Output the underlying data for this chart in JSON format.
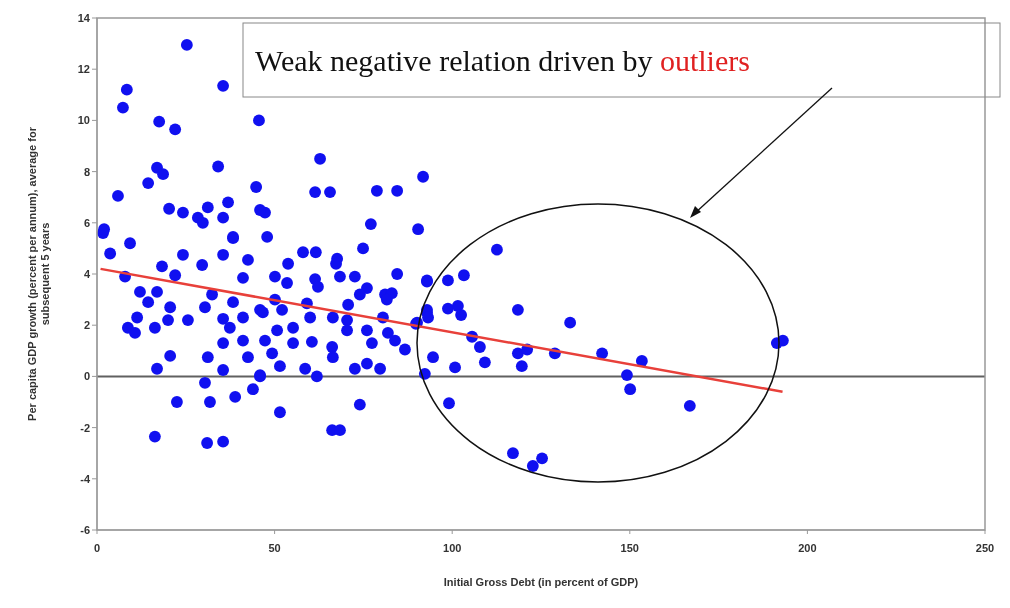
{
  "chart_data": {
    "type": "scatter",
    "xlabel": "Initial Gross Debt (in percent of GDP)",
    "ylabel": "Per capita GDP growth (percent per annum), average for\nsubsequent 5 years",
    "annotations": [
      "Weak negative relation driven by outliers"
    ],
    "xlim": [
      0,
      250
    ],
    "xticks": [
      0,
      50,
      100,
      150,
      200,
      250
    ],
    "ylim": [
      -6,
      14
    ],
    "yticks": [
      -6,
      -4,
      -2,
      0,
      2,
      4,
      6,
      8,
      10,
      12,
      14
    ],
    "grid": false,
    "marker": "circle",
    "ref_lines": [
      {
        "axis": "y",
        "value": 0,
        "color": "#606060"
      }
    ],
    "series": [
      {
        "type": "scatter",
        "color": "#1010f0",
        "x": [
          62.8,
          61.4,
          65.6,
          78.8,
          84.5,
          91.8,
          77.1,
          90.4,
          47.3,
          47.9,
          74.9,
          58,
          61.6,
          53.8,
          67.6,
          67.3,
          50.1,
          53.5,
          61.4,
          62.2,
          68.4,
          72.6,
          84.5,
          92.9,
          76,
          74,
          81.1,
          83,
          81.6,
          92.9,
          59.1,
          70.7,
          45.9,
          50.1,
          52.1,
          60,
          66.4,
          70.4,
          80.5,
          90.1,
          46.7,
          50.7,
          55.2,
          70.4,
          76,
          81.9,
          47.3,
          55.2,
          60.5,
          66.2,
          77.4,
          83.9,
          49.3,
          66.4,
          86.7,
          94.6,
          51.5,
          58.6,
          61.9,
          72.6,
          76,
          79.7,
          45.9,
          74,
          51.5,
          66.2,
          68.4,
          1.7,
          9.3,
          3.7,
          24.2,
          35.5,
          38.3,
          18.3,
          29.6,
          42.5,
          7.9,
          22,
          41.1,
          12.1,
          16.9,
          32.4,
          14.4,
          20.6,
          30.4,
          38.3,
          11.3,
          20,
          25.6,
          35.5,
          41.1,
          8.7,
          10.7,
          16.3,
          37.4,
          41.1,
          35.5,
          20.6,
          31.2,
          42.5,
          16.9,
          35.5,
          45.9,
          30.4,
          43.9,
          22.5,
          31.8,
          38.9,
          16.3,
          31,
          35.5,
          25.3,
          8.4,
          7.3,
          35.5,
          17.5,
          22,
          45.6,
          34.1,
          16.9,
          18.6,
          14.4,
          5.9,
          44.8,
          20.3,
          24.2,
          31.2,
          28.4,
          29.8,
          36.9,
          35.5,
          2,
          38.3,
          45.9,
          112.6,
          92.9,
          98.8,
          103.3,
          92.9,
          93.2,
          98.8,
          101.6,
          102.5,
          118.5,
          133.2,
          89.8,
          105.6,
          107.8,
          100.8,
          109.2,
          118.5,
          121.1,
          119.6,
          128.9,
          142.2,
          153.4,
          149.2,
          150.1,
          166.9,
          92.3,
          99.1,
          191.4,
          193.1,
          117.1,
          125.3,
          122.7
        ],
        "values": [
          8.5,
          7.2,
          7.2,
          7.25,
          7.25,
          7.8,
          5.95,
          5.75,
          6.4,
          5.45,
          5,
          4.85,
          4.85,
          4.4,
          4.6,
          4.4,
          3.9,
          3.65,
          3.8,
          3.5,
          3.9,
          3.9,
          4,
          3.7,
          3.45,
          3.2,
          3.2,
          3.25,
          3,
          2.5,
          2.85,
          2.8,
          2.6,
          3,
          2.6,
          2.3,
          2.3,
          2.2,
          2.3,
          2.1,
          2.5,
          1.8,
          1.9,
          1.8,
          1.8,
          1.7,
          1.4,
          1.3,
          1.35,
          1.15,
          1.3,
          1.4,
          0.9,
          0.75,
          1.05,
          0.75,
          0.4,
          0.3,
          0,
          0.3,
          0.5,
          0.3,
          0,
          -1.1,
          -1.4,
          -2.1,
          -2.1,
          5.6,
          5.2,
          4.8,
          4.75,
          4.75,
          5.4,
          4.3,
          4.35,
          4.55,
          3.9,
          3.95,
          3.85,
          3.3,
          3.3,
          3.2,
          2.9,
          2.7,
          2.7,
          2.9,
          2.3,
          2.2,
          2.2,
          2.25,
          2.3,
          1.9,
          1.7,
          1.9,
          1.9,
          1.4,
          1.3,
          0.8,
          0.75,
          0.75,
          0.3,
          0.25,
          0.05,
          -0.25,
          -0.5,
          -1,
          -1,
          -0.8,
          -2.35,
          -2.6,
          -2.55,
          12.95,
          11.2,
          10.5,
          11.35,
          9.95,
          9.65,
          10,
          8.2,
          8.15,
          7.9,
          7.55,
          7.05,
          7.4,
          6.55,
          6.4,
          6.6,
          6.2,
          6,
          6.8,
          6.2,
          5.75,
          5.45,
          6.5,
          4.95,
          3.75,
          3.75,
          3.95,
          2.6,
          2.3,
          2.65,
          2.75,
          2.4,
          2.6,
          2.1,
          2.05,
          1.55,
          1.15,
          0.35,
          0.55,
          0.9,
          1.05,
          0.4,
          0.9,
          0.9,
          0.6,
          0.05,
          -0.5,
          -1.15,
          0.1,
          -1.05,
          1.3,
          1.4,
          -3,
          -3.2,
          -3.5
        ]
      },
      {
        "type": "line",
        "color": "#e8403a",
        "x": [
          1,
          193
        ],
        "values": [
          4.2,
          -0.6
        ],
        "marker": "none"
      }
    ]
  }
}
